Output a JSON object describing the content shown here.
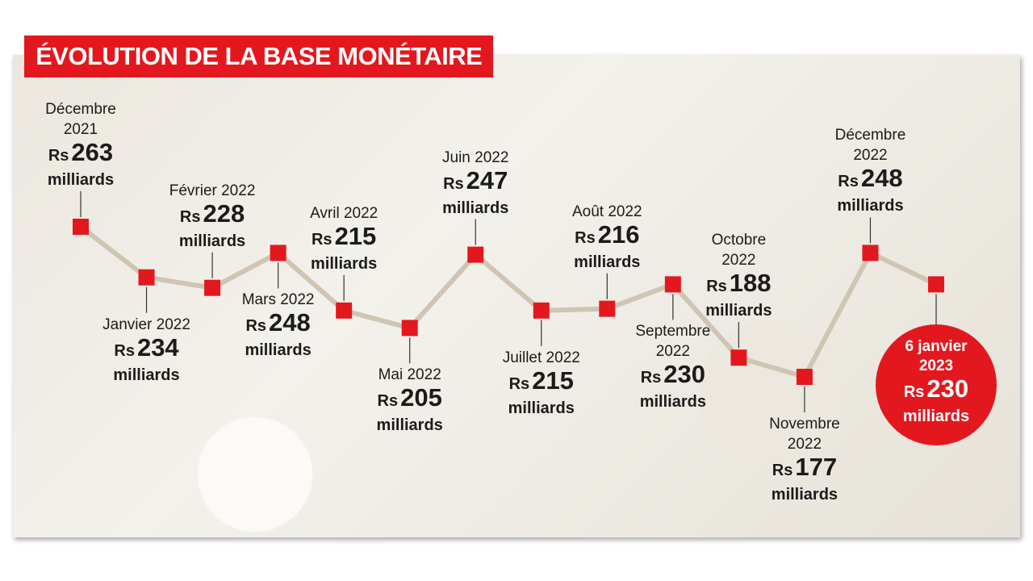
{
  "chart_data": {
    "type": "line",
    "title": "ÉVOLUTION DE LA BASE MONÉTAIRE",
    "currency": "Rs",
    "unit": "milliards",
    "categories": [
      "Décembre 2021",
      "Janvier 2022",
      "Février 2022",
      "Mars 2022",
      "Avril 2022",
      "Mai 2022",
      "Juin 2022",
      "Juillet 2022",
      "Août 2022",
      "Septembre 2022",
      "Octobre 2022",
      "Novembre 2022",
      "Décembre 2022",
      "6 janvier 2023"
    ],
    "values": [
      263,
      234,
      228,
      248,
      215,
      205,
      247,
      215,
      216,
      230,
      188,
      177,
      248,
      230
    ],
    "line_color": "#cfc5b3",
    "marker_color": "#e3181f"
  }
}
